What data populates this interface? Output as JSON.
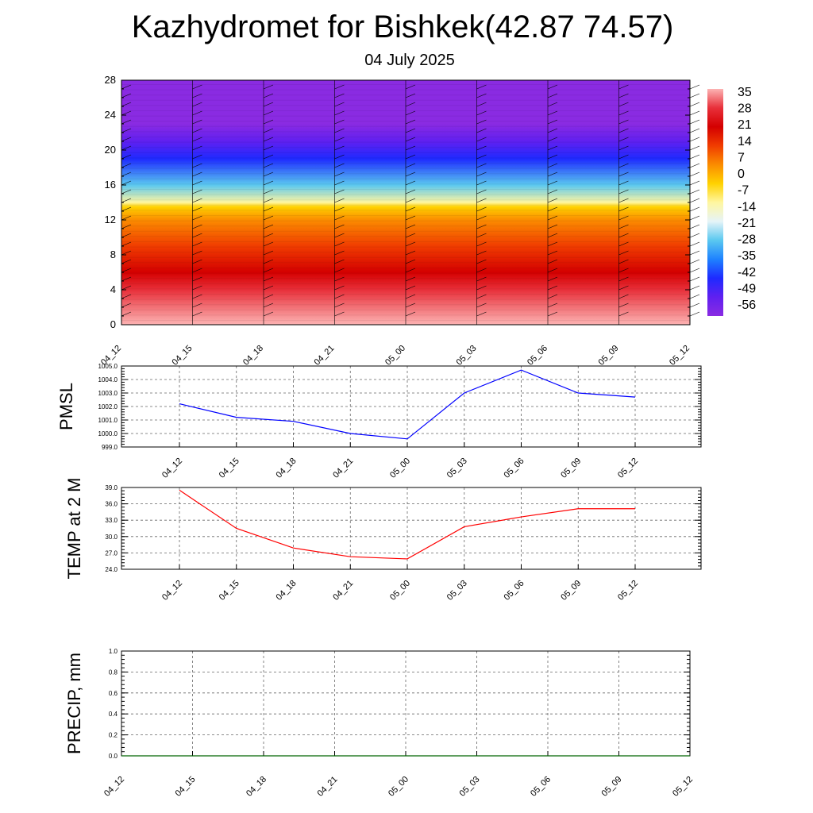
{
  "title": "Kazhydromet for Bishkek(42.87 74.57)",
  "subtitle": "04 July 2025",
  "chart_data": [
    {
      "type": "heatmap",
      "y_ticks": [
        0,
        4,
        8,
        12,
        16,
        20,
        24,
        28
      ],
      "ylim": [
        0,
        28
      ],
      "x_ticks": [
        "04_12",
        "04_15",
        "04_18",
        "04_21",
        "05_00",
        "05_03",
        "05_06",
        "05_09",
        "05_12"
      ],
      "colorbar": {
        "labels": [
          "35",
          "28",
          "21",
          "14",
          "7",
          "0",
          "-7",
          "-14",
          "-21",
          "-28",
          "-35",
          "-42",
          "-49",
          "-56"
        ],
        "colors": [
          "#fcb3b3",
          "#e8303a",
          "#d40000",
          "#f03c00",
          "#fb8c00",
          "#ffd200",
          "#fff6a0",
          "#e6f4f8",
          "#5ac8f0",
          "#1e82ff",
          "#1e2aff",
          "#6020f0",
          "#8a2be2"
        ]
      },
      "profile": [
        {
          "level": 0,
          "value": 35
        },
        {
          "level": 4,
          "value": 30
        },
        {
          "level": 6,
          "value": 21
        },
        {
          "level": 9,
          "value": 14
        },
        {
          "level": 12,
          "value": 3
        },
        {
          "level": 13.5,
          "value": -7
        },
        {
          "level": 14,
          "value": -14
        },
        {
          "level": 16,
          "value": -28
        },
        {
          "level": 19,
          "value": -42
        },
        {
          "level": 21,
          "value": -56
        },
        {
          "level": 23,
          "value": -60
        },
        {
          "level": 28,
          "value": -62
        }
      ]
    },
    {
      "type": "line",
      "ylabel": "PMSL",
      "x": [
        "04_12",
        "04_15",
        "04_18",
        "04_21",
        "05_00",
        "05_03",
        "05_06",
        "05_09",
        "05_12"
      ],
      "y_ticks": [
        "999.0",
        "1000.0",
        "1001.0",
        "1002.0",
        "1003.0",
        "1004.0",
        "1005.0"
      ],
      "ylim": [
        999,
        1005
      ],
      "series": [
        {
          "color": "#0000ff",
          "values": [
            1002.2,
            1001.2,
            1000.9,
            1000.0,
            999.6,
            1003.0,
            1004.7,
            1003.0,
            1002.7
          ]
        }
      ]
    },
    {
      "type": "line",
      "ylabel": "TEMP at 2 M",
      "x": [
        "04_12",
        "04_15",
        "04_18",
        "04_21",
        "05_00",
        "05_03",
        "05_06",
        "05_09",
        "05_12"
      ],
      "y_ticks": [
        "24.0",
        "27.0",
        "30.0",
        "33.0",
        "36.0",
        "39.0"
      ],
      "ylim": [
        24,
        39
      ],
      "series": [
        {
          "color": "#ff0000",
          "values": [
            38.5,
            31.5,
            27.9,
            26.3,
            25.9,
            31.8,
            33.6,
            35.1,
            35.1
          ]
        }
      ]
    },
    {
      "type": "line",
      "ylabel": "PRECIP, mm",
      "x": [
        "04_12",
        "04_15",
        "04_18",
        "04_21",
        "05_00",
        "05_03",
        "05_06",
        "05_09",
        "05_12"
      ],
      "y_ticks": [
        "0.0",
        "0.2",
        "0.4",
        "0.6",
        "0.8",
        "1.0"
      ],
      "ylim": [
        0,
        1
      ],
      "series": [
        {
          "color": "#006400",
          "values": [
            0,
            0,
            0,
            0,
            0,
            0,
            0,
            0,
            0
          ]
        }
      ]
    }
  ]
}
